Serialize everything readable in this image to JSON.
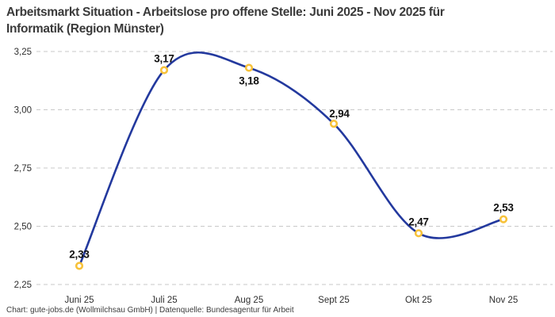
{
  "header": {
    "title_line1": "Arbeitsmarkt Situation - Arbeitslose pro offene Stelle: Juni 2025 - Nov 2025 für",
    "title_line2": "Informatik (Region Münster)"
  },
  "footer": {
    "credit": "Chart: gute-jobs.de (Wollmilchsau GmbH) | Datenquelle: Bundesagentur für Arbeit"
  },
  "chart_data": {
    "type": "line",
    "title": "Arbeitsmarkt Situation - Arbeitslose pro offene Stelle: Juni 2025 - Nov 2025 für Informatik (Region Münster)",
    "categories": [
      "Juni 25",
      "Juli 25",
      "Aug 25",
      "Sept 25",
      "Okt 25",
      "Nov 25"
    ],
    "values": [
      2.33,
      3.17,
      3.18,
      2.94,
      2.47,
      2.53
    ],
    "point_labels": [
      "2,33",
      "3,17",
      "3,18",
      "2,94",
      "2,47",
      "2,53"
    ],
    "label_placement": [
      "above",
      "above",
      "below",
      "above-right",
      "above",
      "above"
    ],
    "xlabel": "",
    "ylabel": "",
    "ylim": [
      2.25,
      3.25
    ],
    "yticks": [
      2.25,
      2.5,
      2.75,
      3.0,
      3.25
    ],
    "ytick_labels": [
      "2,25",
      "2,50",
      "2,75",
      "3,00",
      "3,25"
    ],
    "grid": "dashed-horizontal",
    "legend": "none",
    "smoothing": "spline",
    "colors": {
      "line": "#23399e",
      "marker_ring": "#f7c23a",
      "marker_fill": "#ffffff",
      "grid": "#c9c9c9",
      "tick_text": "#2e2e2e",
      "label_text": "#101010"
    }
  }
}
